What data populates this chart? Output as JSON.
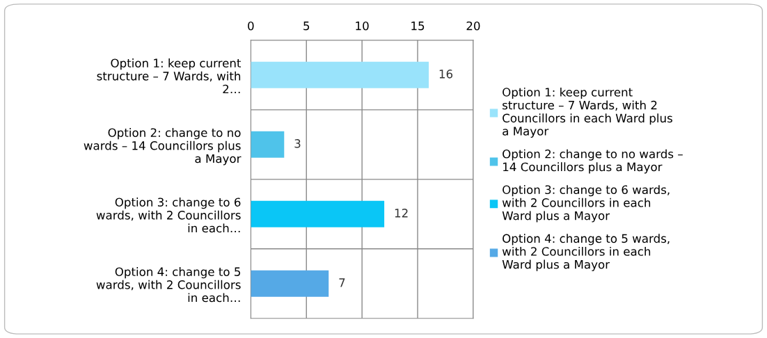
{
  "chart_data": {
    "type": "bar",
    "orientation": "horizontal",
    "categories": [
      "Option 1: keep current structure – 7 Wards, with 2…",
      "Option 2: change to no wards – 14 Councillors plus a Mayor",
      "Option 3: change to 6 wards, with 2 Councillors in each…",
      "Option 4: change to 5 wards, with 2 Councillors in each…"
    ],
    "series": [
      {
        "name": "Option 1: keep current structure – 7 Wards, with 2 Councillors in each Ward plus a Mayor",
        "color": "#99e3fb",
        "values": [
          16,
          null,
          null,
          null
        ]
      },
      {
        "name": "Option 2: change to no wards – 14 Councillors plus a Mayor",
        "color": "#4fc3ea",
        "values": [
          null,
          3,
          null,
          null
        ]
      },
      {
        "name": "Option 3: change to 6 wards, with 2 Councillors in each Ward plus a Mayor",
        "color": "#0ac6f6",
        "values": [
          null,
          null,
          12,
          null
        ]
      },
      {
        "name": "Option 4: change to 5 wards, with 2 Councillors in each Ward plus a Mayor",
        "color": "#55a9e6",
        "values": [
          null,
          null,
          null,
          7
        ]
      }
    ],
    "xlim": [
      0,
      20
    ],
    "xticks": [
      0,
      5,
      10,
      15,
      20
    ],
    "grid": true,
    "legend": "right",
    "data_labels": true
  }
}
